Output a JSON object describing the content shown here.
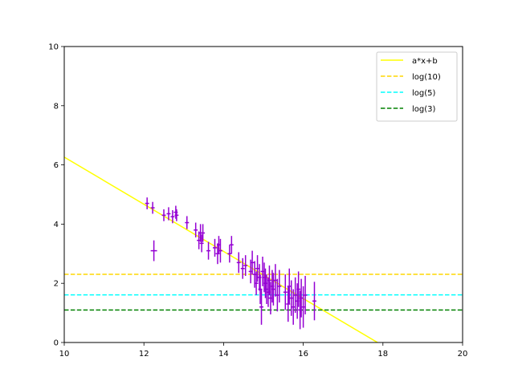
{
  "chart_data": {
    "type": "scatter",
    "title": "",
    "xlabel": "",
    "ylabel": "",
    "xlim": [
      10,
      20
    ],
    "ylim": [
      0,
      10
    ],
    "xticks": [
      10,
      12,
      14,
      16,
      18,
      20
    ],
    "yticks": [
      0,
      2,
      4,
      6,
      8,
      10
    ],
    "xtick_labels": [
      "10",
      "12",
      "14",
      "16",
      "18",
      "20"
    ],
    "ytick_labels": [
      "0",
      "2",
      "4",
      "6",
      "8",
      "10"
    ],
    "grid": false,
    "legend_position": "top-right",
    "points": {
      "color": "#9400d3",
      "data": [
        [
          12.08,
          4.7,
          0.2,
          0.05
        ],
        [
          12.22,
          4.55,
          0.2,
          0.05
        ],
        [
          12.25,
          3.1,
          0.35,
          0.08
        ],
        [
          12.5,
          4.3,
          0.2,
          0.05
        ],
        [
          12.62,
          4.35,
          0.22,
          0.05
        ],
        [
          12.72,
          4.25,
          0.22,
          0.05
        ],
        [
          12.8,
          4.4,
          0.22,
          0.05
        ],
        [
          12.82,
          4.3,
          0.2,
          0.05
        ],
        [
          13.08,
          4.05,
          0.22,
          0.05
        ],
        [
          13.3,
          3.8,
          0.25,
          0.05
        ],
        [
          13.38,
          3.45,
          0.3,
          0.05
        ],
        [
          13.42,
          3.7,
          0.3,
          0.05
        ],
        [
          13.45,
          3.35,
          0.3,
          0.05
        ],
        [
          13.48,
          3.7,
          0.3,
          0.05
        ],
        [
          13.62,
          3.1,
          0.3,
          0.05
        ],
        [
          13.78,
          3.2,
          0.3,
          0.05
        ],
        [
          13.85,
          3.0,
          0.35,
          0.05
        ],
        [
          13.88,
          3.3,
          0.3,
          0.05
        ],
        [
          13.92,
          3.1,
          0.4,
          0.05
        ],
        [
          14.15,
          3.0,
          0.3,
          0.05
        ],
        [
          14.2,
          3.3,
          0.3,
          0.05
        ],
        [
          14.38,
          2.7,
          0.35,
          0.05
        ],
        [
          14.48,
          2.5,
          0.35,
          0.05
        ],
        [
          14.55,
          2.6,
          0.35,
          0.05
        ],
        [
          14.68,
          2.4,
          0.4,
          0.05
        ],
        [
          14.72,
          2.7,
          0.4,
          0.05
        ],
        [
          14.78,
          2.3,
          0.45,
          0.05
        ],
        [
          14.82,
          2.0,
          0.4,
          0.05
        ],
        [
          14.85,
          2.5,
          0.45,
          0.05
        ],
        [
          14.9,
          2.2,
          0.45,
          0.05
        ],
        [
          14.92,
          1.8,
          0.5,
          0.05
        ],
        [
          14.95,
          1.2,
          0.6,
          0.05
        ],
        [
          14.98,
          2.4,
          0.5,
          0.05
        ],
        [
          15.02,
          2.2,
          0.5,
          0.05
        ],
        [
          15.05,
          2.0,
          0.5,
          0.05
        ],
        [
          15.08,
          1.8,
          0.5,
          0.05
        ],
        [
          15.12,
          1.7,
          0.5,
          0.05
        ],
        [
          15.15,
          2.1,
          0.5,
          0.05
        ],
        [
          15.18,
          1.5,
          0.55,
          0.05
        ],
        [
          15.22,
          1.9,
          0.55,
          0.05
        ],
        [
          15.25,
          1.8,
          0.55,
          0.05
        ],
        [
          15.3,
          2.1,
          0.55,
          0.05
        ],
        [
          15.35,
          1.6,
          0.55,
          0.05
        ],
        [
          15.4,
          1.9,
          0.55,
          0.05
        ],
        [
          15.55,
          1.7,
          0.6,
          0.05
        ],
        [
          15.62,
          1.3,
          0.6,
          0.05
        ],
        [
          15.65,
          1.9,
          0.6,
          0.05
        ],
        [
          15.7,
          1.5,
          0.6,
          0.05
        ],
        [
          15.75,
          1.2,
          0.6,
          0.05
        ],
        [
          15.8,
          1.6,
          0.6,
          0.05
        ],
        [
          15.85,
          1.4,
          0.6,
          0.05
        ],
        [
          15.88,
          1.8,
          0.6,
          0.05
        ],
        [
          15.92,
          1.1,
          0.65,
          0.05
        ],
        [
          15.95,
          1.5,
          0.65,
          0.05
        ],
        [
          16.0,
          1.2,
          0.7,
          0.05
        ],
        [
          16.05,
          1.6,
          0.65,
          0.05
        ],
        [
          16.28,
          1.4,
          0.65,
          0.05
        ]
      ]
    },
    "lines": [
      {
        "name": "a*x+b",
        "kind": "linear",
        "slope": -0.7966,
        "intercept": 14.23,
        "color": "#ffff00",
        "dash": "solid"
      },
      {
        "name": "log(10)",
        "kind": "hline",
        "y": 2.302585,
        "color": "#ffd700",
        "dash": "dashed"
      },
      {
        "name": "log(5)",
        "kind": "hline",
        "y": 1.609438,
        "color": "#00ffff",
        "dash": "dashed"
      },
      {
        "name": "log(3)",
        "kind": "hline",
        "y": 1.098612,
        "color": "#008000",
        "dash": "dashed"
      }
    ]
  }
}
